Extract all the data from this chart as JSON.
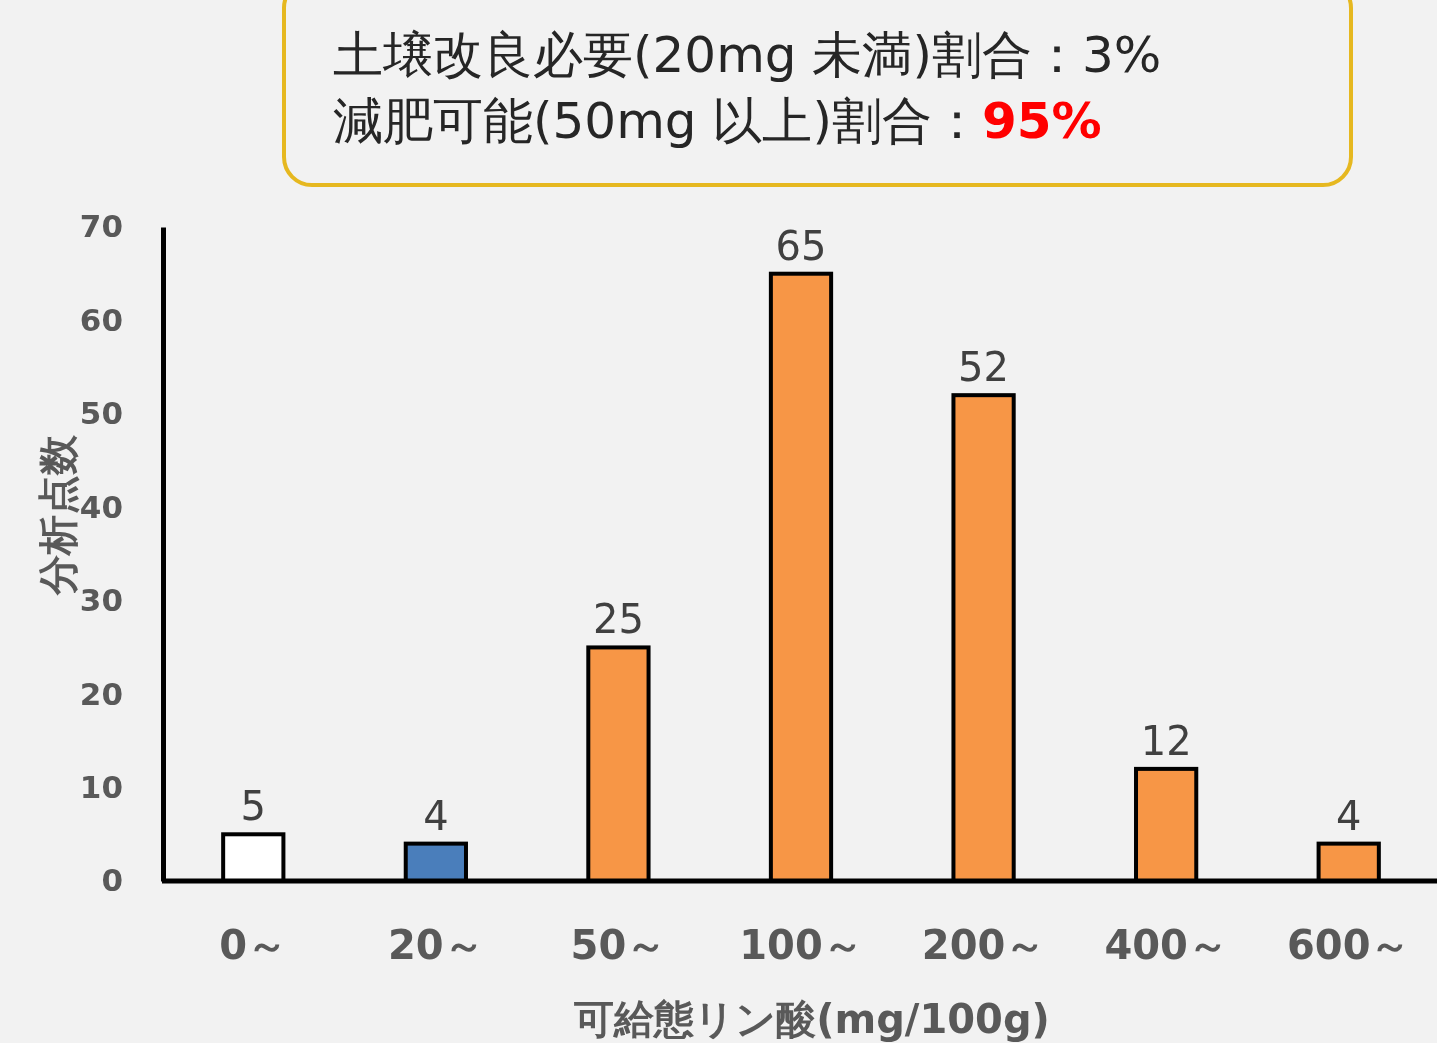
{
  "chart_data": {
    "type": "bar",
    "xlabel": "可給態リン酸(mg/100g)",
    "ylabel": "分析点数",
    "categories": [
      "0～",
      "20～",
      "50～",
      "100～",
      "200～",
      "400～",
      "600～"
    ],
    "values": [
      5,
      4,
      25,
      65,
      52,
      12,
      4
    ],
    "colors": [
      "#ffffff",
      "#4a7ebb",
      "#f79646",
      "#f79646",
      "#f79646",
      "#f79646",
      "#f79646"
    ],
    "ylim": [
      0,
      70
    ],
    "yticks": [
      0,
      10,
      20,
      30,
      40,
      50,
      60,
      70
    ],
    "grid": false,
    "data_labels": true,
    "annotations": [
      "土壌改良必要(20mg 未満)割合：3%",
      "減肥可能(50mg 以上)割合：",
      "95%"
    ]
  }
}
